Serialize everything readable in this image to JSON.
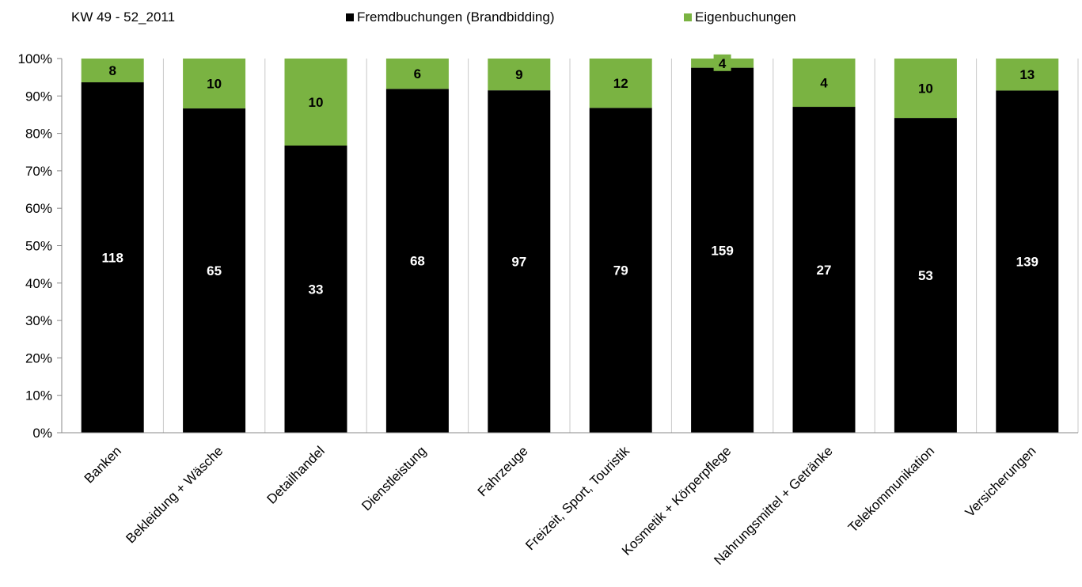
{
  "chart_data": {
    "type": "bar",
    "stacked": "percent",
    "subtitle": "KW 49 - 52_2011",
    "categories": [
      "Banken",
      "Bekleidung + Wäsche",
      "Detailhandel",
      "Dienstleistung",
      "Fahrzeuge",
      "Freizeit, Sport, Touristik",
      "Kosmetik + Körperpflege",
      "Nahrungsmittel + Getränke",
      "Telekommunikation",
      "Versicherungen"
    ],
    "series": [
      {
        "name": "Fremdbuchungen (Brandbidding)",
        "color": "#000000",
        "values": [
          118,
          65,
          33,
          68,
          97,
          79,
          159,
          27,
          53,
          139
        ]
      },
      {
        "name": "Eigenbuchungen",
        "color": "#7ab342",
        "values": [
          8,
          10,
          10,
          6,
          9,
          12,
          4,
          4,
          10,
          13
        ]
      }
    ],
    "yticks": [
      "0%",
      "10%",
      "20%",
      "30%",
      "40%",
      "50%",
      "60%",
      "70%",
      "80%",
      "90%",
      "100%"
    ],
    "ylim": [
      0,
      100
    ],
    "grid": "vertical",
    "legend_position": "top"
  }
}
